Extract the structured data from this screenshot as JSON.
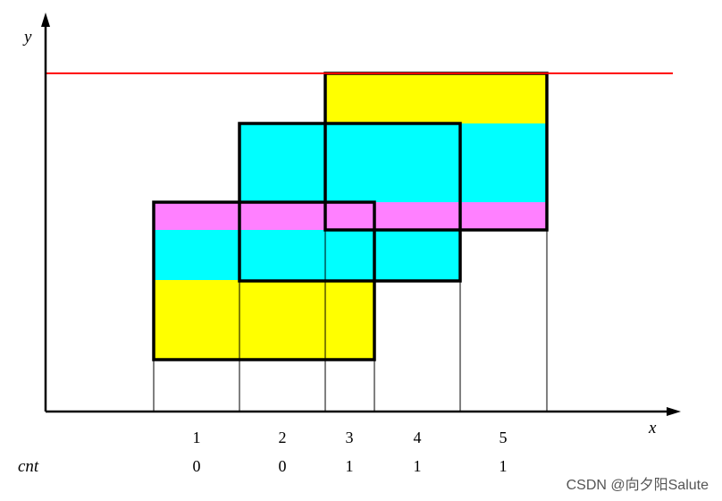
{
  "labels": {
    "y_axis": "y",
    "x_axis": "x",
    "cnt": "cnt",
    "watermark": "CSDN @向夕阳Salute"
  },
  "segments": [
    {
      "index": "1",
      "cnt": "0"
    },
    {
      "index": "2",
      "cnt": "0"
    },
    {
      "index": "3",
      "cnt": "1"
    },
    {
      "index": "4",
      "cnt": "1"
    },
    {
      "index": "5",
      "cnt": "1"
    }
  ],
  "colors": {
    "yellow": "#ffff00",
    "cyan": "#00ffff",
    "magenta": "#ff80ff",
    "red_line": "#ff0000",
    "outline": "#000000"
  }
}
